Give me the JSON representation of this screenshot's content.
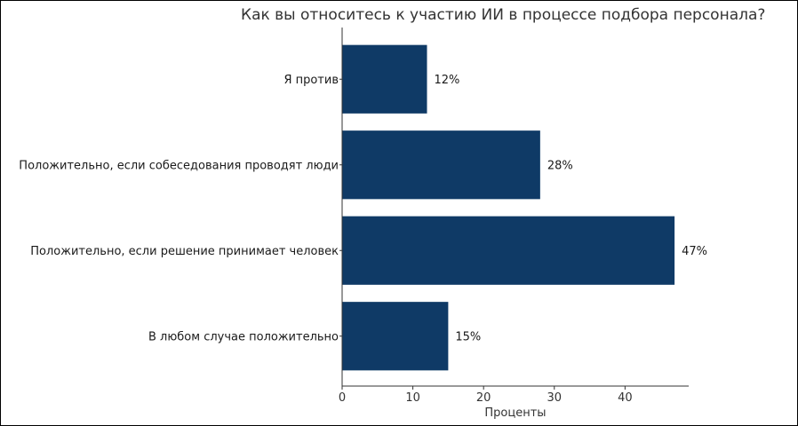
{
  "chart_data": {
    "type": "bar",
    "orientation": "horizontal",
    "title": "Как вы относитесь к участию ИИ в процессе подбора персонала?",
    "xlabel": "Проценты",
    "ylabel": "",
    "categories": [
      "Я против",
      "Положительно, если собеседования проводят люди",
      "Положительно, если решение принимает человек",
      "В любом случае положительно"
    ],
    "values": [
      12,
      28,
      47,
      15
    ],
    "value_labels": [
      "12%",
      "28%",
      "47%",
      "15%"
    ],
    "xlim": [
      0,
      49
    ],
    "xticks": [
      0,
      10,
      20,
      30,
      40
    ],
    "grid": false,
    "bar_color": "#0f3a66"
  }
}
